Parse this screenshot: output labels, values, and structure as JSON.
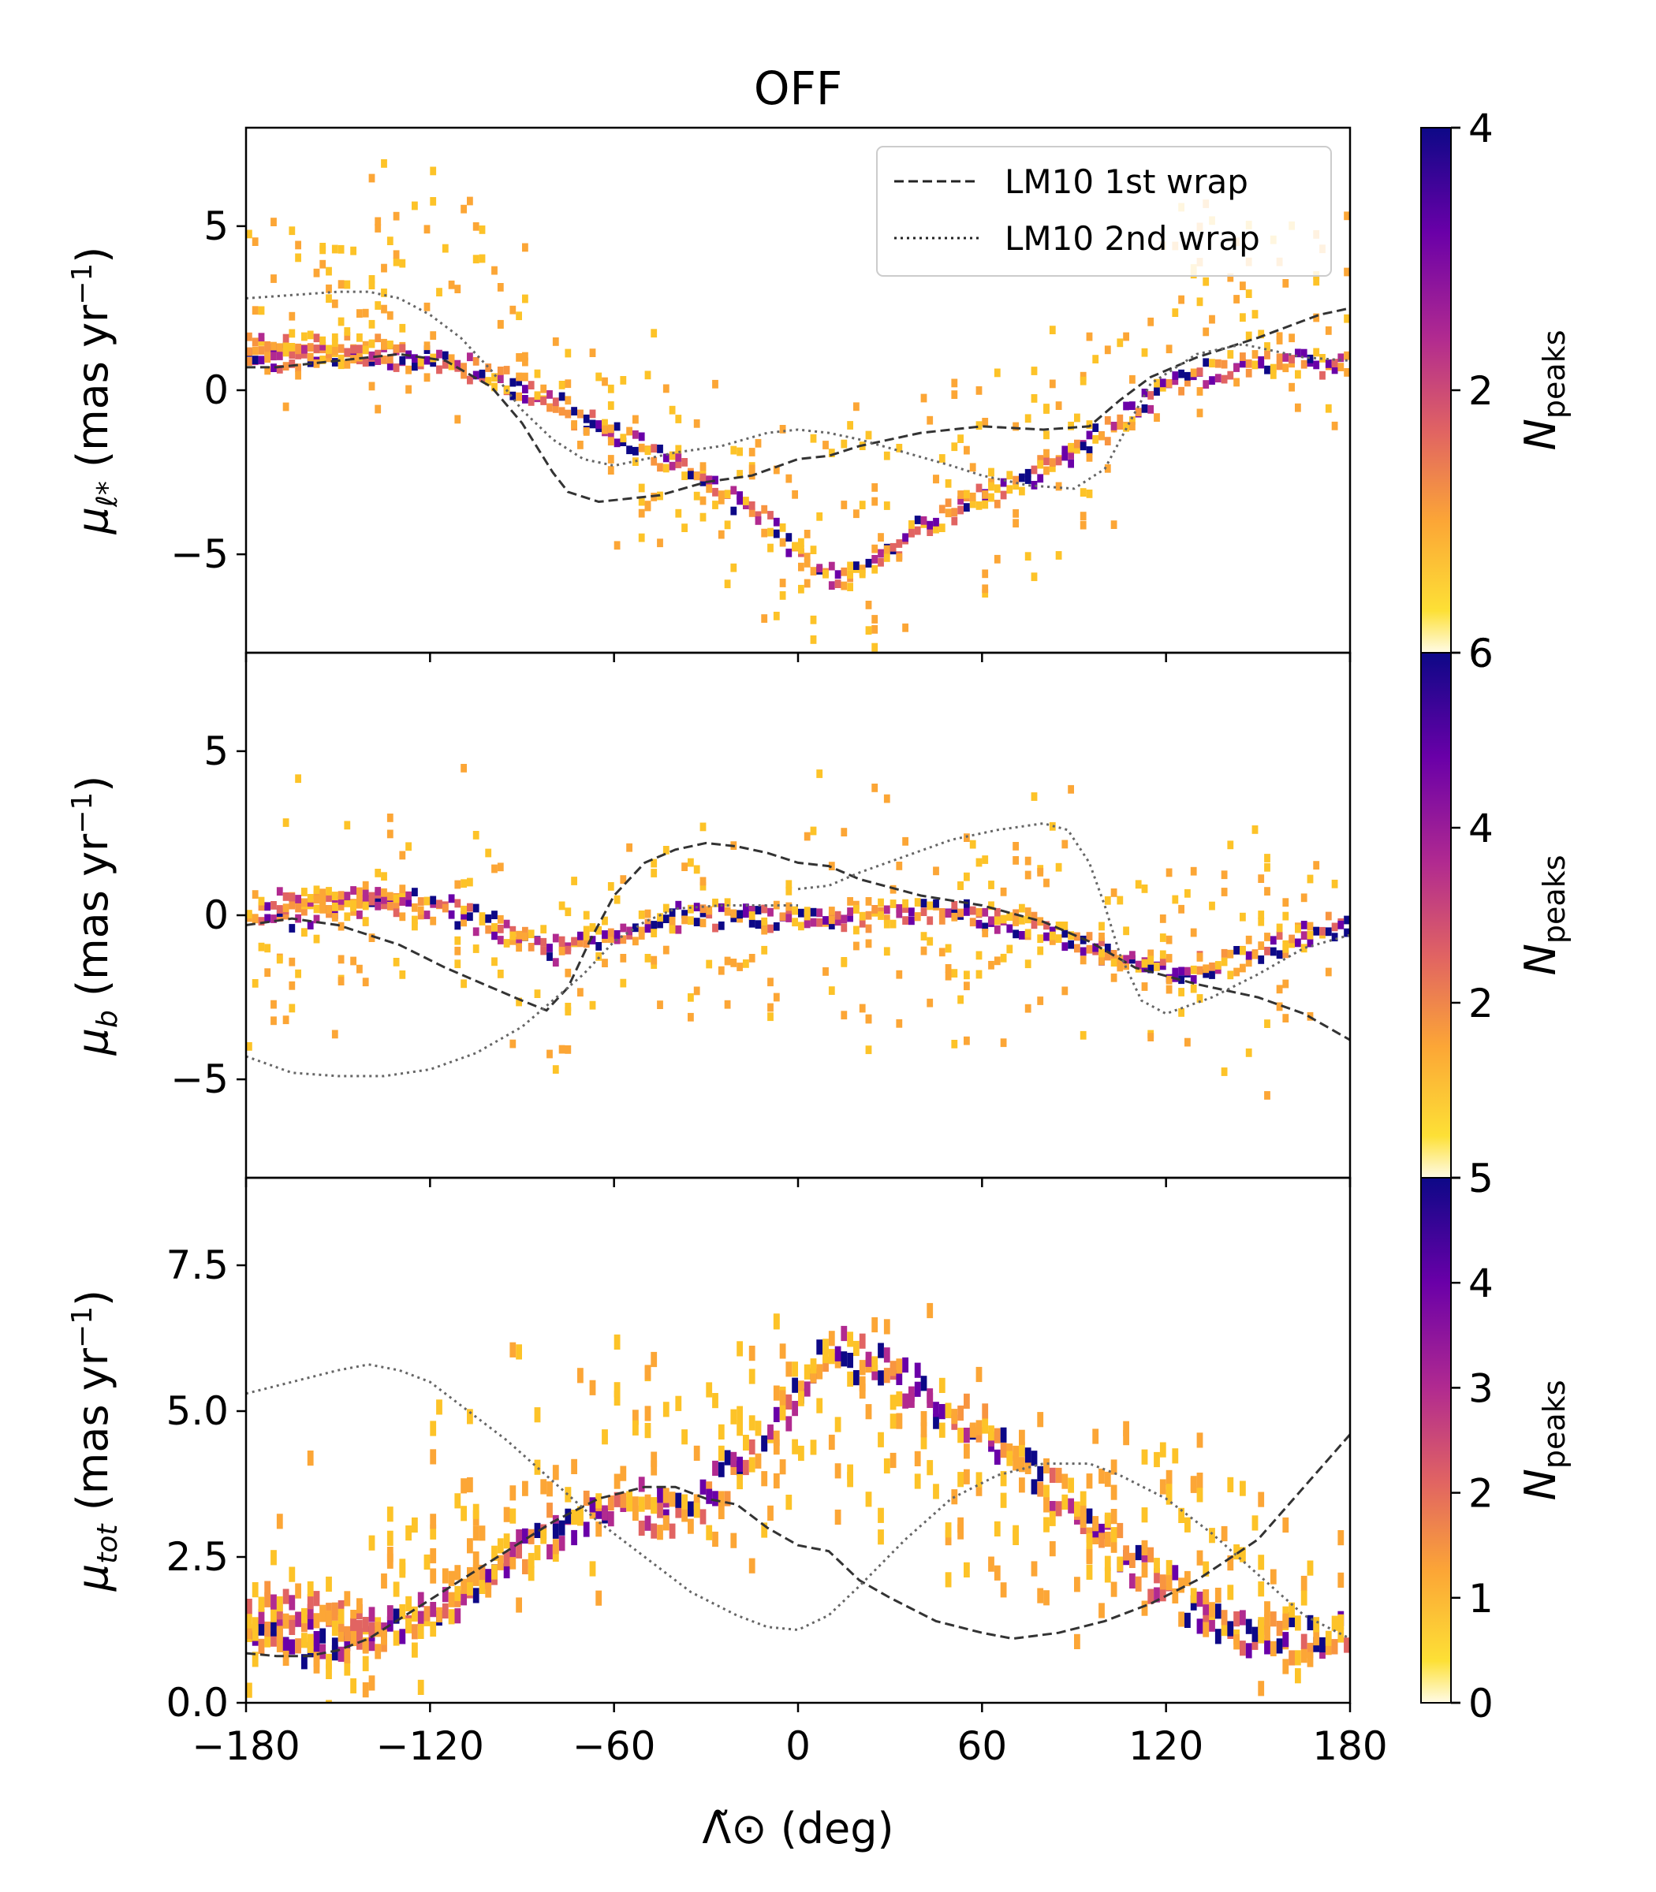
{
  "chart_data": {
    "type": "heatmap",
    "title": "OFF",
    "xlabel": "Λ̃⊙ (deg)",
    "xlim": [
      -180,
      180
    ],
    "xticks": [
      -180,
      -120,
      -60,
      0,
      60,
      120,
      180
    ],
    "xtick_labels": [
      "−180",
      "−120",
      "−60",
      "0",
      "60",
      "120",
      "180"
    ],
    "legend": {
      "position": "top-right",
      "entries": [
        {
          "label": "LM10 1st wrap",
          "style": "dashed"
        },
        {
          "label": "LM10 2nd wrap",
          "style": "dotted"
        }
      ]
    },
    "colormap": "plasma_r",
    "panels": [
      {
        "name": "mu_l",
        "ylabel": "μℓ* (mas yr⁻¹)",
        "ylabel_main": "μ",
        "ylabel_sub": "ℓ*",
        "ylabel_unit": " (mas yr",
        "ylim": [
          -8,
          8
        ],
        "yticks": [
          -5,
          0,
          5
        ],
        "ytick_labels": [
          "−5",
          "0",
          "5"
        ],
        "colorbar": {
          "label": "Npeaks",
          "label_main": "N",
          "label_sub": "peaks",
          "vmin": 0,
          "vmax": 4,
          "ticks": [
            2,
            4
          ],
          "tick_labels": [
            "2",
            "4"
          ],
          "bottom_label": "6"
        },
        "ridge": {
          "x": [
            -180,
            -150,
            -120,
            -100,
            -80,
            -60,
            -40,
            -20,
            0,
            10,
            20,
            30,
            40,
            60,
            80,
            100,
            120,
            140,
            160,
            180
          ],
          "y": [
            0.8,
            0.9,
            0.8,
            0.3,
            -0.6,
            -1.5,
            -2.4,
            -3.6,
            -5.0,
            -5.8,
            -5.6,
            -5.0,
            -4.3,
            -3.4,
            -2.5,
            -1.4,
            0.0,
            0.6,
            0.6,
            0.8
          ]
        },
        "ridge2": {
          "x": [
            -180,
            -150,
            -130
          ],
          "y": [
            1.3,
            1.2,
            1.1
          ]
        },
        "scatter_center": {
          "x": [
            -180,
            -140,
            -110,
            -90,
            -70,
            -50,
            -30,
            -10,
            10,
            30,
            50,
            70,
            90,
            110,
            130,
            150,
            180
          ],
          "y": [
            2,
            3,
            4,
            2,
            0,
            -2,
            -3,
            -4,
            -4,
            -4,
            -3,
            -2,
            -1,
            1,
            3,
            2,
            1
          ]
        },
        "lm10_1st": {
          "x": [
            -180,
            -170,
            -150,
            -130,
            -115,
            -100,
            -90,
            -80,
            -75,
            -65,
            -55,
            -45,
            -30,
            -15,
            0,
            10,
            20,
            40,
            60,
            80,
            95,
            105,
            115,
            130,
            150,
            170,
            180
          ],
          "y": [
            0.7,
            0.7,
            0.9,
            1.1,
            0.9,
            0.1,
            -1.0,
            -2.5,
            -3.1,
            -3.4,
            -3.3,
            -3.2,
            -2.8,
            -2.6,
            -2.1,
            -2.0,
            -1.7,
            -1.3,
            -1.1,
            -1.2,
            -1.1,
            -0.3,
            0.4,
            1.0,
            1.6,
            2.3,
            2.5
          ]
        },
        "lm10_2nd": {
          "x": [
            -180,
            -165,
            -150,
            -140,
            -130,
            -120,
            -110,
            -100,
            -90,
            -80,
            -70,
            -60,
            -50,
            -40,
            -25,
            -10,
            0,
            10,
            20,
            35,
            50,
            60,
            75,
            90,
            100,
            108,
            115,
            130,
            145,
            165,
            180
          ],
          "y": [
            2.8,
            2.9,
            3.0,
            3.0,
            2.8,
            2.3,
            1.6,
            0.6,
            -0.6,
            -1.5,
            -2.1,
            -2.3,
            -2.1,
            -1.9,
            -1.7,
            -1.3,
            -1.2,
            -1.3,
            -1.5,
            -1.9,
            -2.3,
            -2.6,
            -2.9,
            -3.0,
            -2.4,
            -1.0,
            0.2,
            1.1,
            1.4,
            1.0,
            0.9
          ]
        }
      },
      {
        "name": "mu_b",
        "ylabel": "μb (mas yr⁻¹)",
        "ylabel_main": "μ",
        "ylabel_sub": "b",
        "ylabel_unit": " (mas yr",
        "ylim": [
          -8,
          8
        ],
        "yticks": [
          -5,
          0,
          5
        ],
        "ytick_labels": [
          "−5",
          "0",
          "5"
        ],
        "colorbar": {
          "label": "Npeaks",
          "label_main": "N",
          "label_sub": "peaks",
          "vmin": 0,
          "vmax": 6,
          "ticks": [
            2,
            4
          ],
          "tick_labels": [
            "2",
            "4"
          ],
          "bottom_label": "5"
        },
        "ridge": {
          "x": [
            -180,
            -160,
            -140,
            -120,
            -100,
            -80,
            -60,
            -40,
            -20,
            0,
            20,
            40,
            60,
            80,
            100,
            120,
            140,
            160,
            180
          ],
          "y": [
            -0.3,
            -0.1,
            0.3,
            0.2,
            -0.5,
            -1.2,
            -0.7,
            -0.2,
            -0.1,
            -0.3,
            -0.2,
            0.1,
            -0.2,
            -0.6,
            -1.4,
            -1.8,
            -1.6,
            -0.9,
            -0.3
          ]
        },
        "ridge2": {
          "x": [
            -170,
            -150,
            -130
          ],
          "y": [
            0.4,
            0.4,
            0.3
          ]
        },
        "scatter_center": {
          "x": [
            -180,
            -140,
            -110,
            -90,
            -70,
            -50,
            -30,
            -10,
            10,
            30,
            50,
            70,
            90,
            110,
            130,
            150,
            180
          ],
          "y": [
            -1,
            0,
            1,
            -1,
            -2,
            -1,
            0,
            -1,
            0,
            0,
            0,
            1,
            0,
            -1,
            -1,
            -1,
            -1
          ]
        },
        "lm10_1st": {
          "x": [
            -180,
            -165,
            -150,
            -130,
            -115,
            -100,
            -90,
            -82,
            -75,
            -68,
            -60,
            -50,
            -40,
            -30,
            -20,
            -10,
            0,
            10,
            20,
            40,
            60,
            80,
            95,
            110,
            130,
            150,
            165,
            180
          ],
          "y": [
            -0.3,
            -0.1,
            -0.3,
            -0.9,
            -1.6,
            -2.2,
            -2.6,
            -2.9,
            -2.2,
            -0.8,
            0.6,
            1.6,
            2.0,
            2.2,
            2.1,
            1.9,
            1.6,
            1.5,
            1.1,
            0.6,
            0.3,
            -0.2,
            -0.8,
            -1.6,
            -2.1,
            -2.5,
            -3.0,
            -3.8
          ]
        },
        "lm10_2nd_a": {
          "x": [
            -180,
            -165,
            -150,
            -135,
            -120,
            -105,
            -90,
            -80,
            -70,
            -60,
            -50,
            -40,
            -25,
            -10,
            0
          ],
          "y": [
            -4.3,
            -4.8,
            -4.9,
            -4.9,
            -4.7,
            -4.2,
            -3.4,
            -2.6,
            -1.8,
            -0.8,
            -0.2,
            0.2,
            0.3,
            0.3,
            0.3
          ]
        },
        "lm10_2nd_b": {
          "x": [
            0,
            10,
            20,
            35,
            50,
            65,
            80,
            88,
            95,
            100,
            105,
            112,
            120,
            135,
            150,
            165,
            180
          ],
          "y": [
            0.8,
            0.9,
            1.3,
            1.8,
            2.3,
            2.6,
            2.8,
            2.6,
            1.6,
            0.3,
            -1.2,
            -2.6,
            -3.0,
            -2.5,
            -1.8,
            -1.0,
            -0.6
          ]
        }
      },
      {
        "name": "mu_tot",
        "ylabel": "μtot (mas yr⁻¹)",
        "ylabel_main": "μ",
        "ylabel_sub": "tot",
        "ylabel_unit": " (mas yr",
        "ylim": [
          0,
          9
        ],
        "yticks": [
          0,
          2.5,
          5,
          7.5
        ],
        "ytick_labels": [
          "0.0",
          "2.5",
          "5.0",
          "7.5"
        ],
        "colorbar": {
          "label": "Npeaks",
          "label_main": "N",
          "label_sub": "peaks",
          "vmin": 0,
          "vmax": 5,
          "ticks": [
            0,
            1,
            2,
            3,
            4,
            5
          ],
          "tick_labels": [
            "0",
            "1",
            "2",
            "3",
            "4",
            "5"
          ],
          "bottom_label": "0"
        },
        "ridge": {
          "x": [
            -180,
            -160,
            -140,
            -120,
            -100,
            -80,
            -60,
            -40,
            -20,
            0,
            10,
            20,
            30,
            40,
            60,
            80,
            100,
            120,
            140,
            160,
            180
          ],
          "y": [
            1.0,
            0.9,
            1.0,
            1.4,
            2.1,
            2.9,
            3.3,
            3.1,
            3.9,
            5.2,
            5.9,
            5.7,
            5.5,
            5.1,
            4.5,
            3.6,
            2.6,
            1.8,
            1.2,
            1.0,
            0.9
          ]
        },
        "ridge2": {
          "x": [
            -180,
            -160,
            -140
          ],
          "y": [
            1.6,
            1.4,
            1.2
          ]
        },
        "scatter_center": {
          "x": [
            -180,
            -140,
            -110,
            -90,
            -70,
            -50,
            -30,
            -10,
            10,
            30,
            50,
            70,
            90,
            110,
            130,
            150,
            180
          ],
          "y": [
            1,
            2,
            3,
            4,
            4,
            4,
            4,
            5,
            5,
            5,
            4,
            3,
            3,
            3,
            3,
            2,
            1
          ]
        },
        "lm10_1st": {
          "x": [
            -180,
            -170,
            -160,
            -150,
            -140,
            -125,
            -110,
            -95,
            -80,
            -65,
            -50,
            -40,
            -30,
            -20,
            -10,
            0,
            10,
            20,
            30,
            45,
            60,
            70,
            85,
            100,
            115,
            130,
            150,
            165,
            180
          ],
          "y": [
            0.85,
            0.8,
            0.8,
            0.9,
            1.1,
            1.6,
            2.1,
            2.6,
            3.1,
            3.5,
            3.7,
            3.7,
            3.5,
            3.4,
            3.0,
            2.7,
            2.6,
            2.1,
            1.8,
            1.4,
            1.2,
            1.1,
            1.2,
            1.4,
            1.7,
            2.1,
            2.8,
            3.7,
            4.6
          ]
        },
        "lm10_2nd": {
          "x": [
            -180,
            -165,
            -150,
            -140,
            -130,
            -120,
            -110,
            -95,
            -80,
            -65,
            -50,
            -35,
            -20,
            -10,
            0,
            10,
            20,
            35,
            50,
            65,
            80,
            95,
            105,
            120,
            135,
            150,
            165,
            180
          ],
          "y": [
            5.3,
            5.5,
            5.7,
            5.8,
            5.7,
            5.5,
            5.1,
            4.5,
            3.8,
            3.1,
            2.5,
            1.9,
            1.5,
            1.3,
            1.25,
            1.5,
            2.0,
            2.8,
            3.5,
            3.9,
            4.1,
            4.1,
            3.9,
            3.5,
            2.9,
            2.2,
            1.5,
            1.1
          ]
        }
      }
    ]
  }
}
